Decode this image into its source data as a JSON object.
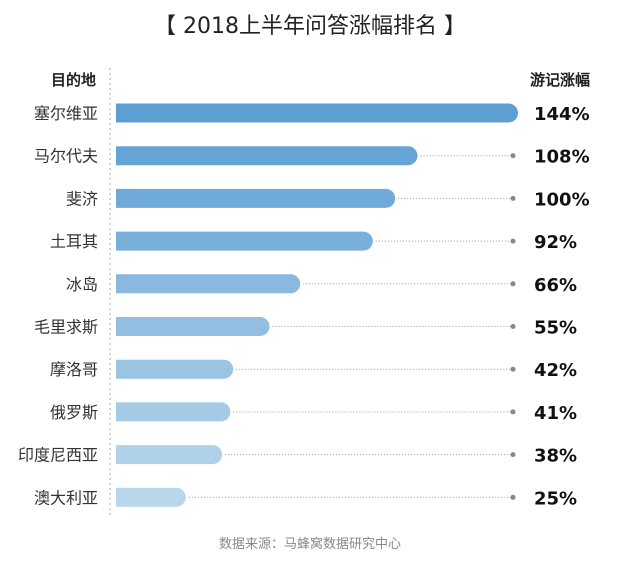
{
  "chart_data": {
    "type": "bar",
    "orientation": "horizontal",
    "title": "【 2018上半年问答涨幅排名 】",
    "category_header": "目的地",
    "value_header": "游记涨幅",
    "categories": [
      "塞尔维亚",
      "马尔代夫",
      "斐济",
      "土耳其",
      "冰岛",
      "毛里求斯",
      "摩洛哥",
      "俄罗斯",
      "印度尼西亚",
      "澳大利亚"
    ],
    "values": [
      144,
      108,
      100,
      92,
      66,
      55,
      42,
      41,
      38,
      25
    ],
    "value_labels": [
      "144%",
      "108%",
      "100%",
      "92%",
      "66%",
      "55%",
      "42%",
      "41%",
      "38%",
      "25%"
    ],
    "unit": "%",
    "xlim": [
      0,
      144
    ],
    "colors": [
      "#5e9fd3",
      "#67a4d6",
      "#70aad8",
      "#79b0db",
      "#89b9df",
      "#92bfe1",
      "#9bc4e3",
      "#a5cae6",
      "#aed0e9",
      "#b9d7ec"
    ],
    "source": "数据来源：马蜂窝数据研究中心"
  }
}
